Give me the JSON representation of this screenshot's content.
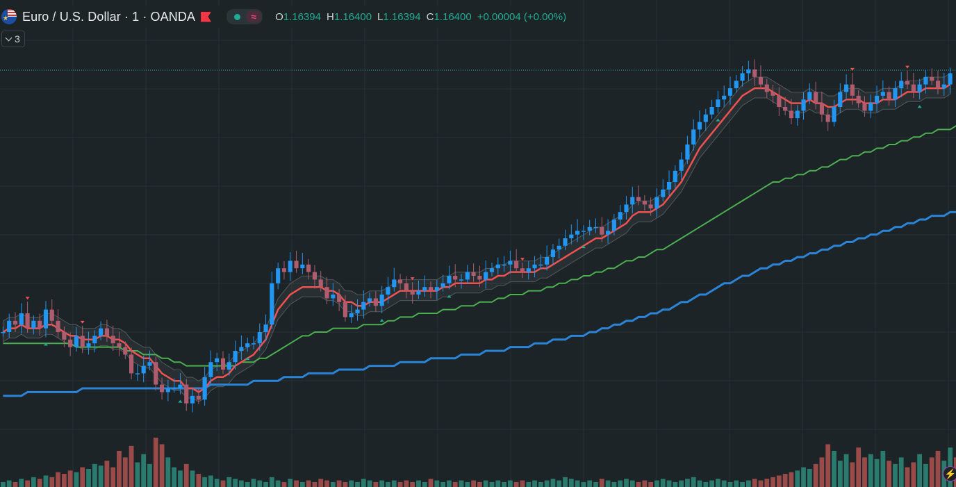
{
  "header": {
    "symbol_title": "Euro / U.S. Dollar · 1 · OANDA",
    "flag_icon": "eur-usd-flag-icon",
    "status_icon": "market-open-dot-icon",
    "tilde_icon": "replay-tilde-icon",
    "tilde_glyph": "≈",
    "ohlc": {
      "open_label": "O",
      "open_value": "1.16394",
      "high_label": "H",
      "high_value": "1.16400",
      "low_label": "L",
      "low_value": "1.16394",
      "close_label": "C",
      "close_value": "1.16400",
      "change": "+0.00004 (+0.00%)"
    },
    "collapse_count": "3"
  },
  "bolt_icon": "lightning-bolt-icon",
  "colors": {
    "background": "#1c2427",
    "up_candle": "#2196f3",
    "down_candle": "#b05c6f",
    "ema_fast": "#f05151",
    "ema_mid": "#4caf50",
    "ema_slow": "#2b84d6",
    "volume_up": "#2a7a6e",
    "volume_down": "#9a4a48",
    "signal_up": "#22ab94",
    "signal_down": "#f05151"
  },
  "chart_data": {
    "type": "candlestick",
    "title": "Euro / U.S. Dollar · 1 · OANDA",
    "close_series": [
      0.3,
      0.33,
      0.32,
      0.35,
      0.31,
      0.33,
      0.31,
      0.36,
      0.33,
      0.3,
      0.28,
      0.26,
      0.29,
      0.26,
      0.27,
      0.29,
      0.31,
      0.29,
      0.27,
      0.26,
      0.24,
      0.19,
      0.19,
      0.21,
      0.22,
      0.16,
      0.14,
      0.15,
      0.15,
      0.16,
      0.11,
      0.13,
      0.12,
      0.18,
      0.22,
      0.23,
      0.2,
      0.22,
      0.25,
      0.26,
      0.27,
      0.27,
      0.3,
      0.32,
      0.43,
      0.47,
      0.46,
      0.49,
      0.47,
      0.48,
      0.46,
      0.44,
      0.42,
      0.39,
      0.4,
      0.38,
      0.34,
      0.35,
      0.36,
      0.38,
      0.39,
      0.37,
      0.4,
      0.42,
      0.44,
      0.43,
      0.41,
      0.4,
      0.41,
      0.42,
      0.41,
      0.42,
      0.43,
      0.45,
      0.44,
      0.44,
      0.46,
      0.45,
      0.44,
      0.46,
      0.47,
      0.48,
      0.48,
      0.49,
      0.47,
      0.46,
      0.47,
      0.48,
      0.48,
      0.5,
      0.52,
      0.53,
      0.55,
      0.56,
      0.57,
      0.57,
      0.58,
      0.58,
      0.56,
      0.57,
      0.6,
      0.62,
      0.64,
      0.66,
      0.65,
      0.64,
      0.63,
      0.66,
      0.68,
      0.7,
      0.73,
      0.76,
      0.8,
      0.84,
      0.86,
      0.88,
      0.9,
      0.92,
      0.93,
      0.95,
      0.97,
      0.99,
      1.0,
      0.98,
      0.96,
      0.94,
      0.93,
      0.9,
      0.89,
      0.87,
      0.89,
      0.92,
      0.94,
      0.91,
      0.88,
      0.86,
      0.9,
      0.94,
      0.96,
      0.93,
      0.91,
      0.89,
      0.91,
      0.93,
      0.94,
      0.92,
      0.95,
      0.97,
      0.96,
      0.94,
      0.96,
      0.98,
      0.97,
      0.95,
      0.96,
      0.99
    ],
    "ema_fast": [
      0.3,
      0.31,
      0.31,
      0.32,
      0.31,
      0.31,
      0.31,
      0.32,
      0.32,
      0.31,
      0.3,
      0.29,
      0.29,
      0.28,
      0.28,
      0.28,
      0.29,
      0.29,
      0.28,
      0.28,
      0.27,
      0.25,
      0.24,
      0.23,
      0.23,
      0.21,
      0.19,
      0.18,
      0.17,
      0.17,
      0.15,
      0.15,
      0.14,
      0.15,
      0.17,
      0.18,
      0.18,
      0.19,
      0.21,
      0.22,
      0.23,
      0.24,
      0.26,
      0.28,
      0.32,
      0.36,
      0.38,
      0.4,
      0.41,
      0.42,
      0.42,
      0.42,
      0.42,
      0.41,
      0.41,
      0.4,
      0.38,
      0.38,
      0.37,
      0.37,
      0.38,
      0.38,
      0.38,
      0.39,
      0.4,
      0.41,
      0.41,
      0.41,
      0.41,
      0.41,
      0.41,
      0.41,
      0.42,
      0.42,
      0.43,
      0.43,
      0.43,
      0.43,
      0.43,
      0.44,
      0.44,
      0.45,
      0.45,
      0.46,
      0.46,
      0.46,
      0.46,
      0.46,
      0.47,
      0.47,
      0.48,
      0.49,
      0.5,
      0.51,
      0.52,
      0.53,
      0.54,
      0.55,
      0.55,
      0.56,
      0.57,
      0.58,
      0.59,
      0.61,
      0.62,
      0.62,
      0.62,
      0.63,
      0.64,
      0.66,
      0.68,
      0.7,
      0.73,
      0.76,
      0.79,
      0.81,
      0.83,
      0.85,
      0.87,
      0.89,
      0.91,
      0.93,
      0.94,
      0.95,
      0.95,
      0.95,
      0.94,
      0.93,
      0.92,
      0.91,
      0.91,
      0.91,
      0.92,
      0.91,
      0.91,
      0.9,
      0.9,
      0.91,
      0.92,
      0.92,
      0.92,
      0.91,
      0.91,
      0.91,
      0.92,
      0.92,
      0.92,
      0.93,
      0.94,
      0.94,
      0.94,
      0.95,
      0.95,
      0.95,
      0.95,
      0.96
    ],
    "ema_mid": [
      0.27,
      0.27,
      0.27,
      0.27,
      0.27,
      0.27,
      0.27,
      0.27,
      0.27,
      0.27,
      0.27,
      0.27,
      0.26,
      0.26,
      0.26,
      0.26,
      0.26,
      0.26,
      0.26,
      0.26,
      0.25,
      0.25,
      0.25,
      0.24,
      0.24,
      0.24,
      0.23,
      0.23,
      0.22,
      0.22,
      0.21,
      0.21,
      0.21,
      0.21,
      0.21,
      0.21,
      0.21,
      0.21,
      0.21,
      0.22,
      0.22,
      0.22,
      0.23,
      0.23,
      0.24,
      0.25,
      0.26,
      0.27,
      0.28,
      0.29,
      0.29,
      0.3,
      0.3,
      0.3,
      0.31,
      0.31,
      0.31,
      0.31,
      0.31,
      0.32,
      0.32,
      0.32,
      0.32,
      0.33,
      0.33,
      0.34,
      0.34,
      0.34,
      0.35,
      0.35,
      0.35,
      0.35,
      0.36,
      0.36,
      0.36,
      0.37,
      0.37,
      0.37,
      0.38,
      0.38,
      0.38,
      0.39,
      0.39,
      0.4,
      0.4,
      0.4,
      0.41,
      0.41,
      0.41,
      0.42,
      0.42,
      0.43,
      0.43,
      0.44,
      0.44,
      0.45,
      0.45,
      0.46,
      0.46,
      0.47,
      0.47,
      0.48,
      0.49,
      0.49,
      0.5,
      0.5,
      0.51,
      0.52,
      0.52,
      0.53,
      0.54,
      0.55,
      0.56,
      0.57,
      0.58,
      0.59,
      0.6,
      0.61,
      0.62,
      0.63,
      0.64,
      0.65,
      0.66,
      0.67,
      0.68,
      0.69,
      0.7,
      0.7,
      0.71,
      0.71,
      0.72,
      0.72,
      0.73,
      0.73,
      0.74,
      0.74,
      0.75,
      0.76,
      0.76,
      0.77,
      0.77,
      0.78,
      0.78,
      0.79,
      0.79,
      0.8,
      0.8,
      0.81,
      0.81,
      0.82,
      0.82,
      0.83,
      0.83,
      0.84,
      0.84,
      0.84,
      0.85,
      0.85
    ],
    "ema_slow": [
      0.13,
      0.13,
      0.13,
      0.13,
      0.14,
      0.14,
      0.14,
      0.14,
      0.14,
      0.14,
      0.14,
      0.14,
      0.14,
      0.15,
      0.15,
      0.15,
      0.15,
      0.15,
      0.15,
      0.15,
      0.15,
      0.15,
      0.15,
      0.15,
      0.15,
      0.15,
      0.15,
      0.15,
      0.15,
      0.15,
      0.15,
      0.15,
      0.15,
      0.15,
      0.16,
      0.16,
      0.16,
      0.16,
      0.16,
      0.16,
      0.16,
      0.17,
      0.17,
      0.17,
      0.17,
      0.17,
      0.18,
      0.18,
      0.18,
      0.18,
      0.19,
      0.19,
      0.19,
      0.19,
      0.19,
      0.2,
      0.2,
      0.2,
      0.2,
      0.2,
      0.21,
      0.21,
      0.21,
      0.21,
      0.21,
      0.22,
      0.22,
      0.22,
      0.22,
      0.22,
      0.23,
      0.23,
      0.23,
      0.23,
      0.23,
      0.24,
      0.24,
      0.24,
      0.24,
      0.25,
      0.25,
      0.25,
      0.25,
      0.26,
      0.26,
      0.26,
      0.26,
      0.27,
      0.27,
      0.27,
      0.28,
      0.28,
      0.28,
      0.29,
      0.29,
      0.29,
      0.3,
      0.3,
      0.31,
      0.31,
      0.32,
      0.32,
      0.33,
      0.33,
      0.34,
      0.34,
      0.35,
      0.35,
      0.36,
      0.36,
      0.37,
      0.38,
      0.38,
      0.39,
      0.4,
      0.4,
      0.41,
      0.42,
      0.43,
      0.43,
      0.44,
      0.45,
      0.45,
      0.46,
      0.47,
      0.47,
      0.48,
      0.48,
      0.49,
      0.49,
      0.5,
      0.5,
      0.51,
      0.51,
      0.52,
      0.52,
      0.53,
      0.53,
      0.54,
      0.54,
      0.55,
      0.55,
      0.56,
      0.56,
      0.57,
      0.57,
      0.58,
      0.58,
      0.59,
      0.59,
      0.6,
      0.6,
      0.61,
      0.61,
      0.61,
      0.62,
      0.62
    ],
    "volume": [
      3,
      4,
      3,
      5,
      4,
      6,
      5,
      7,
      6,
      9,
      8,
      10,
      9,
      12,
      11,
      14,
      13,
      16,
      12,
      22,
      18,
      25,
      15,
      20,
      14,
      30,
      26,
      18,
      12,
      10,
      14,
      10,
      8,
      6,
      7,
      5,
      4,
      6,
      5,
      4,
      3,
      5,
      4,
      3,
      6,
      4,
      3,
      5,
      4,
      3,
      4,
      3,
      5,
      4,
      3,
      4,
      3,
      4,
      3,
      5,
      4,
      3,
      4,
      3,
      4,
      3,
      4,
      3,
      4,
      3,
      5,
      4,
      3,
      4,
      3,
      4,
      3,
      4,
      3,
      4,
      3,
      4,
      3,
      4,
      3,
      4,
      3,
      4,
      3,
      4,
      5,
      4,
      6,
      5,
      4,
      3,
      4,
      3,
      5,
      4,
      3,
      4,
      5,
      4,
      3,
      4,
      3,
      4,
      5,
      4,
      3,
      4,
      5,
      6,
      4,
      3,
      4,
      5,
      4,
      3,
      4,
      3,
      4,
      5,
      4,
      5,
      6,
      7,
      8,
      9,
      10,
      12,
      11,
      14,
      18,
      26,
      22,
      16,
      20,
      15,
      24,
      18,
      20,
      17,
      22,
      16,
      14,
      18,
      12,
      15,
      20,
      14,
      18,
      22,
      16,
      24,
      18,
      15,
      20,
      12
    ],
    "volume_ymax": 30
  }
}
